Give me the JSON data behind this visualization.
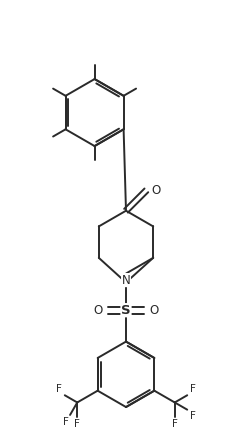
{
  "bg_color": "#ffffff",
  "line_color": "#2a2a2a",
  "line_width": 1.4,
  "figsize": [
    2.52,
    4.45
  ],
  "dpi": 100,
  "xlim": [
    -4.5,
    4.5
  ],
  "ylim": [
    -8.5,
    8.5
  ]
}
